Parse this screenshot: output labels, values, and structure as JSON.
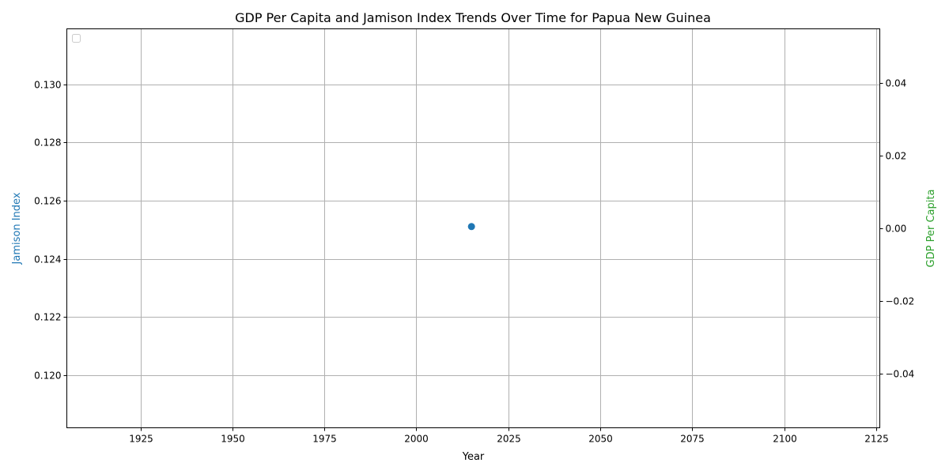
{
  "chart_data": {
    "type": "scatter",
    "title": "GDP Per Capita and Jamison Index Trends Over Time for Papua New Guinea",
    "xlabel": "Year",
    "ylabel_left": "Jamison Index",
    "ylabel_right": "GDP Per Capita",
    "xlim": [
      1905,
      2126
    ],
    "ylim_left": [
      0.1182,
      0.1319
    ],
    "ylim_right": [
      -0.055,
      0.055
    ],
    "x_ticks": [
      1925,
      1950,
      1975,
      2000,
      2025,
      2050,
      2075,
      2100,
      2125
    ],
    "y_ticks_left": [
      0.12,
      0.122,
      0.124,
      0.126,
      0.128,
      0.13
    ],
    "y_ticks_left_labels": [
      "0.120",
      "0.122",
      "0.124",
      "0.126",
      "0.128",
      "0.130"
    ],
    "y_ticks_right": [
      -0.04,
      -0.02,
      0.0,
      0.02,
      0.04
    ],
    "y_ticks_right_labels": [
      "−0.04",
      "−0.02",
      "0.00",
      "0.02",
      "0.04"
    ],
    "grid": true,
    "legend_placement": "top-left",
    "colors": {
      "left_axis": "#1f77b4",
      "right_axis": "#2ca02c",
      "grid": "#b0b0b0"
    },
    "series": [
      {
        "axis": "left",
        "color": "#1f77b4",
        "points": [
          {
            "x": 2015,
            "y": 0.12511
          }
        ]
      },
      {
        "axis": "right",
        "color": "#2ca02c",
        "points": []
      }
    ]
  }
}
